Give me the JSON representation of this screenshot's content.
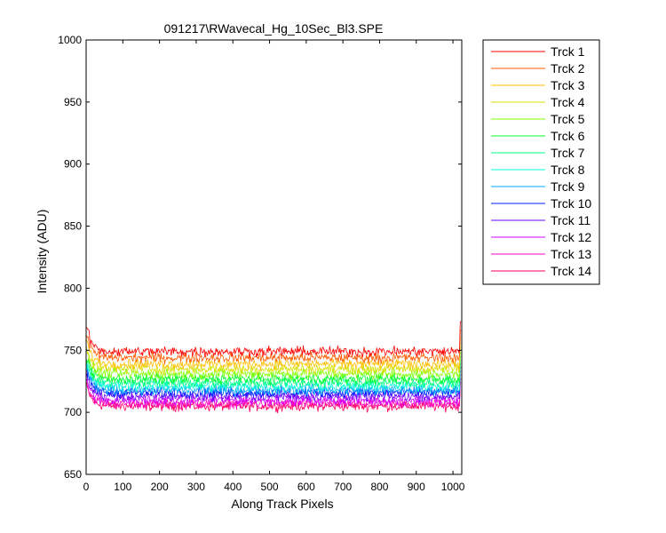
{
  "chart_data": {
    "type": "line",
    "title": "091217\\RWavecal_Hg_10Sec_Bl3.SPE",
    "xlabel": "Along Track Pixels",
    "ylabel": "Intensity (ADU)",
    "xlim": [
      0,
      1024
    ],
    "ylim": [
      650,
      1000
    ],
    "xticks": [
      0,
      100,
      200,
      300,
      400,
      500,
      600,
      700,
      800,
      900,
      1000
    ],
    "yticks": [
      650,
      700,
      750,
      800,
      850,
      900,
      950,
      1000
    ],
    "grid": false,
    "legend_position": "outside-right-top",
    "series": [
      {
        "name": "Trck 1",
        "color": "#ff0000",
        "baseline": 749,
        "start": 771,
        "end": 773,
        "noise": 2.5
      },
      {
        "name": "Trck 2",
        "color": "#ff5a00",
        "baseline": 744,
        "start": 764,
        "end": 766,
        "noise": 2.5
      },
      {
        "name": "Trck 3",
        "color": "#ffbf00",
        "baseline": 739,
        "start": 760,
        "end": 760,
        "noise": 2.5
      },
      {
        "name": "Trck 4",
        "color": "#d8e000",
        "baseline": 735,
        "start": 755,
        "end": 756,
        "noise": 2.5
      },
      {
        "name": "Trck 5",
        "color": "#80ff00",
        "baseline": 731,
        "start": 751,
        "end": 752,
        "noise": 2.5
      },
      {
        "name": "Trck 6",
        "color": "#00ff2a",
        "baseline": 727,
        "start": 747,
        "end": 748,
        "noise": 2.5
      },
      {
        "name": "Trck 7",
        "color": "#00ff80",
        "baseline": 724,
        "start": 744,
        "end": 745,
        "noise": 2.5
      },
      {
        "name": "Trck 8",
        "color": "#00ffd5",
        "baseline": 721,
        "start": 741,
        "end": 742,
        "noise": 2.5
      },
      {
        "name": "Trck 9",
        "color": "#00aaff",
        "baseline": 718,
        "start": 738,
        "end": 739,
        "noise": 2.5
      },
      {
        "name": "Trck 10",
        "color": "#0020ff",
        "baseline": 716,
        "start": 735,
        "end": 736,
        "noise": 2.5
      },
      {
        "name": "Trck 11",
        "color": "#6a00ff",
        "baseline": 713,
        "start": 732,
        "end": 733,
        "noise": 2.5
      },
      {
        "name": "Trck 12",
        "color": "#d000ff",
        "baseline": 710,
        "start": 729,
        "end": 730,
        "noise": 2.5
      },
      {
        "name": "Trck 13",
        "color": "#ff00c0",
        "baseline": 707,
        "start": 726,
        "end": 727,
        "noise": 2.5
      },
      {
        "name": "Trck 14",
        "color": "#ff0060",
        "baseline": 705,
        "start": 723,
        "end": 724,
        "noise": 2.5
      }
    ]
  }
}
